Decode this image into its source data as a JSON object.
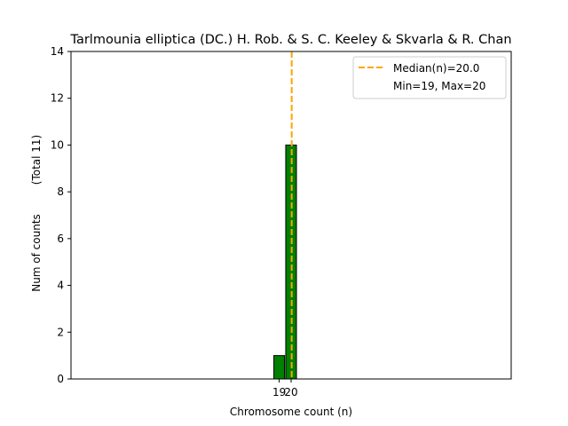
{
  "chart_data": {
    "type": "bar",
    "title": "Tarlmounia elliptica (DC.) H. Rob. & S. C. Keeley & Skvarla & R. Chan",
    "xlabel": "Chromosome count (n)",
    "ylabel": "Num of counts",
    "ylabel_total": "(Total 11)",
    "x": [
      19,
      20
    ],
    "values": [
      1,
      10
    ],
    "xlim": [
      1.5,
      38.5
    ],
    "ylim": [
      0,
      14
    ],
    "yticks": [
      0,
      2,
      4,
      6,
      8,
      10,
      12,
      14
    ],
    "xticks": [
      19,
      20
    ],
    "median": 20.0,
    "legend": {
      "placement": "top-right",
      "median_label": "Median(n)=20.0",
      "range_label": "Min=19, Max=20"
    },
    "colors": {
      "bar": "#008000",
      "median_line": "#ffa500",
      "bar_edge": "#000000"
    },
    "grid": false
  }
}
